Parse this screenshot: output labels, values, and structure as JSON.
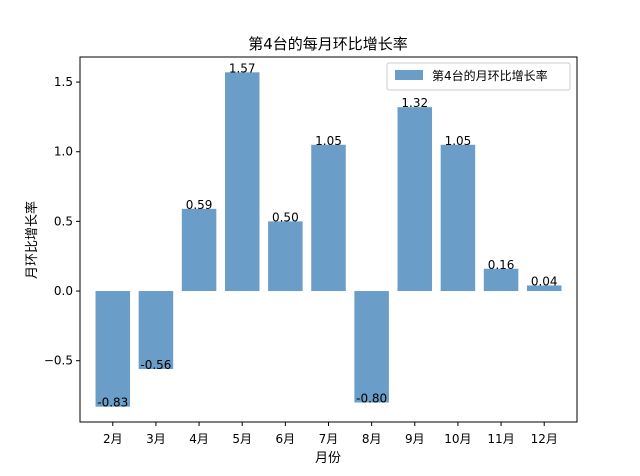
{
  "chart_data": {
    "type": "bar",
    "title": "第4台的每月环比增长率",
    "xlabel": "月份",
    "ylabel": "月环比增长率",
    "categories": [
      "2月",
      "3月",
      "4月",
      "5月",
      "6月",
      "7月",
      "8月",
      "9月",
      "10月",
      "11月",
      "12月"
    ],
    "series": [
      {
        "name": "第4台的月环比增长率",
        "values": [
          -0.83,
          -0.56,
          0.59,
          1.57,
          0.5,
          1.05,
          -0.8,
          1.32,
          1.05,
          0.16,
          0.04
        ],
        "labels": [
          "-0.83",
          "-0.56",
          "0.59",
          "1.57",
          "0.50",
          "1.05",
          "-0.80",
          "1.32",
          "1.05",
          "0.16",
          "0.04"
        ]
      }
    ],
    "ylim": [
      -0.94,
      1.68
    ],
    "yticks": [
      -0.5,
      0.0,
      0.5,
      1.0,
      1.5
    ],
    "ytick_labels": [
      "−0.5",
      "0.0",
      "0.5",
      "1.0",
      "1.5"
    ],
    "bar_color": "#6a9dc7",
    "grid": false,
    "legend_position": "upper right"
  }
}
